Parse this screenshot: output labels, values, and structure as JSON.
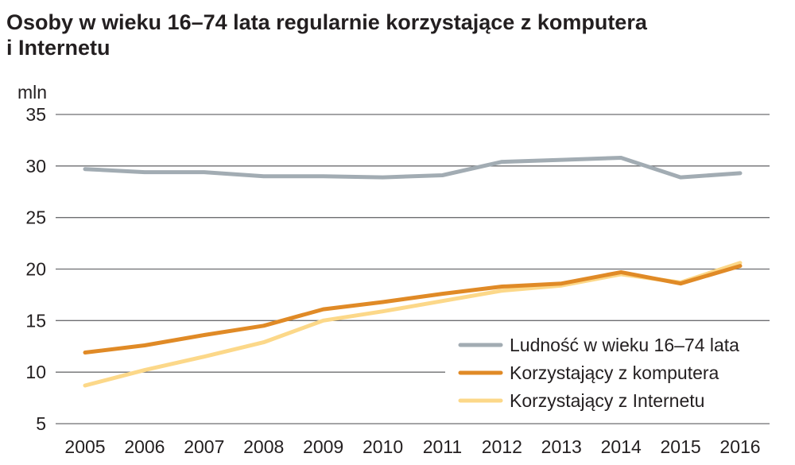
{
  "chart_data": {
    "type": "line",
    "title_lines": [
      "Osoby w wieku 16–74 lata regularnie  korzystające z komputera",
      "i Internetu"
    ],
    "ylabel": "mln",
    "xlabel": "",
    "x": [
      "2005",
      "2006",
      "2007",
      "2008",
      "2009",
      "2010",
      "2011",
      "2012",
      "2013",
      "2014",
      "2015",
      "2016"
    ],
    "ylim": [
      5,
      35
    ],
    "yticks": [
      5,
      10,
      15,
      20,
      25,
      30,
      35
    ],
    "grid": "horizontal",
    "legend_position": "bottom-right",
    "series": [
      {
        "name": "Ludność w wieku 16–74 lata",
        "color": "#a2acb3",
        "values": [
          29.7,
          29.4,
          29.4,
          29.0,
          29.0,
          28.9,
          29.1,
          30.4,
          30.6,
          30.8,
          28.9,
          29.3
        ]
      },
      {
        "name": "Korzystający z komputera",
        "color": "#e08a26",
        "values": [
          11.9,
          12.6,
          13.6,
          14.5,
          16.1,
          16.8,
          17.6,
          18.3,
          18.6,
          19.7,
          18.6,
          20.3
        ]
      },
      {
        "name": "Korzystający z Internetu",
        "color": "#fcd889",
        "values": [
          8.7,
          10.2,
          11.5,
          12.9,
          15.0,
          15.9,
          16.9,
          17.9,
          18.4,
          19.5,
          18.7,
          20.6
        ]
      }
    ]
  }
}
